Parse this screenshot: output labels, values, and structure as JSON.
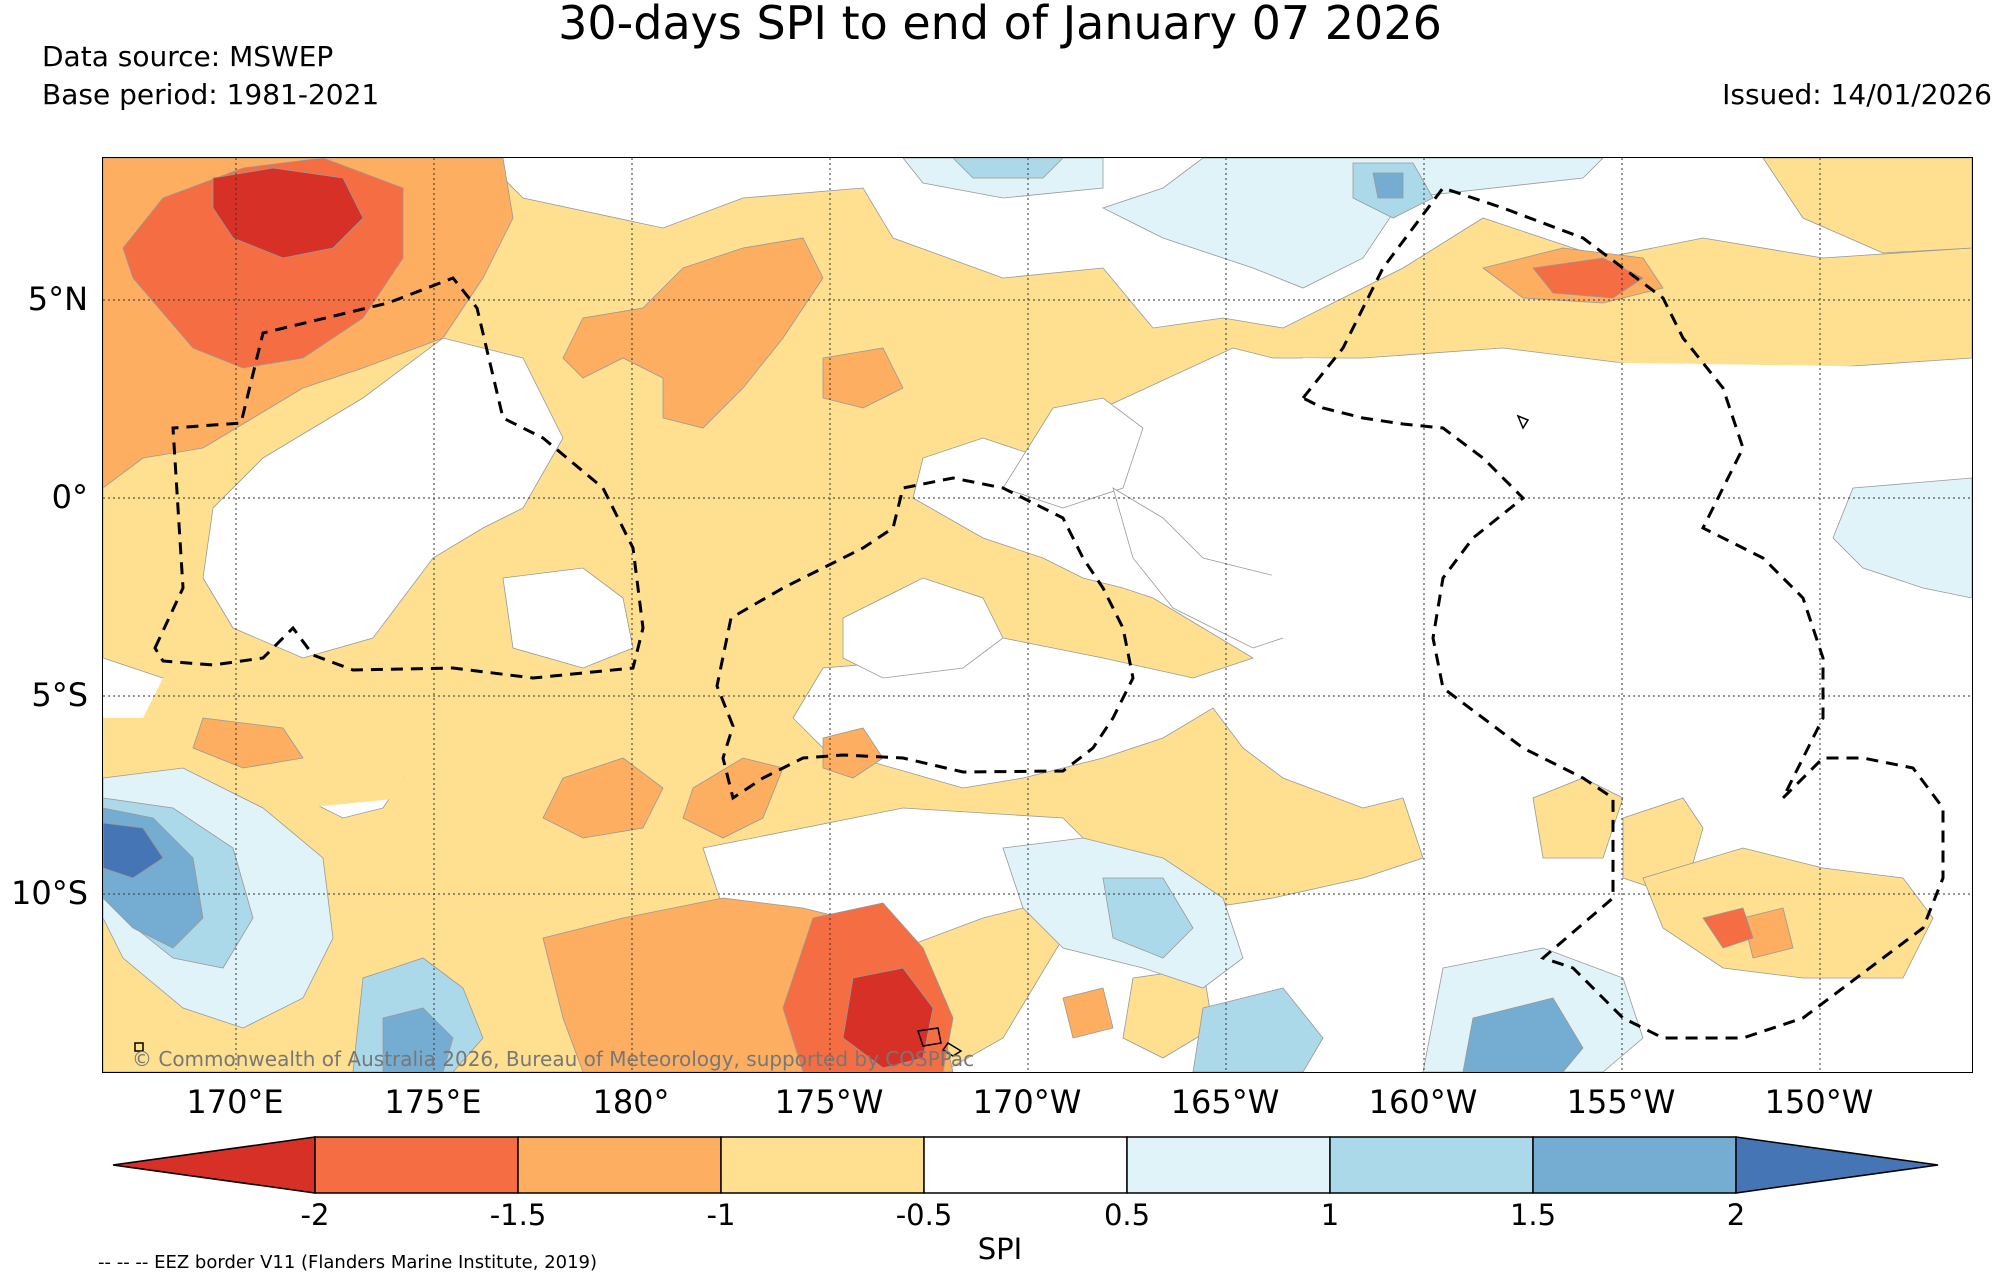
{
  "title": "30-days SPI to end of January 07 2026",
  "data_source": "Data source: MSWEP",
  "base_period": "Base period: 1981-2021",
  "issued": "Issued: 14/01/2026",
  "copyright": "© Commonwealth of Australia 2026, Bureau of Meteorology, supported by COSPPac",
  "eez_note": "-- -- -- EEZ border V11 (Flanders Marine Institute, 2019)",
  "lat_labels": [
    "5°N",
    "0°",
    "5°S",
    "10°S"
  ],
  "lon_labels": [
    "170°E",
    "175°E",
    "180°",
    "175°W",
    "170°W",
    "165°W",
    "160°W",
    "155°W",
    "150°W"
  ],
  "colorbar": {
    "label": "SPI",
    "ticks": [
      "-2",
      "-1.5",
      "-1",
      "-0.5",
      "0.5",
      "1",
      "1.5",
      "2"
    ],
    "colors": [
      "#d73027",
      "#f46d43",
      "#fdae61",
      "#fee090",
      "#ffffff",
      "#e0f3f8",
      "#abd9e9",
      "#74add1",
      "#4575b4"
    ]
  },
  "map": {
    "type": "spi-contour-map",
    "lon_range": [
      "167°E",
      "146°W"
    ],
    "lat_range": [
      "15°S",
      "8°N"
    ],
    "grid": "dotted",
    "region_colors": {
      "very_dry": "#d73027",
      "dry": "#f46d43",
      "moderately_dry": "#fdae61",
      "slightly_dry": "#fee090",
      "near_normal": "#ffffff",
      "slightly_wet": "#e0f3f8",
      "moderately_wet": "#abd9e9",
      "wet": "#74add1",
      "very_wet": "#4575b4"
    },
    "eez_border": "dashed"
  }
}
